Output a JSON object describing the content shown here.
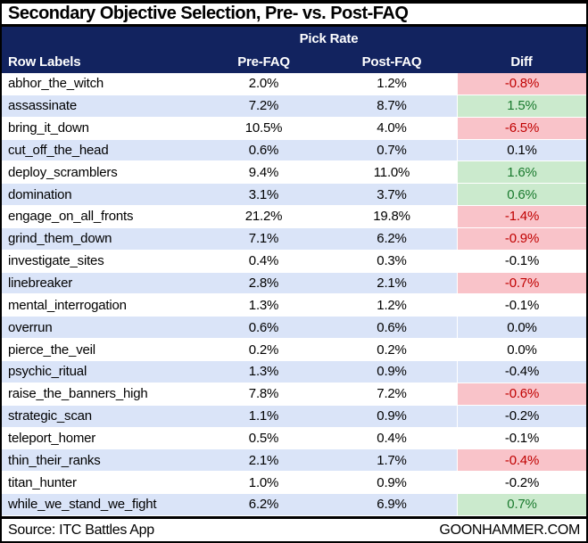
{
  "title": "Secondary Objective Selection, Pre- vs. Post-FAQ",
  "header": {
    "group_label": "Pick Rate",
    "columns": [
      "Row Labels",
      "Pre-FAQ",
      "Post-FAQ",
      "Diff"
    ]
  },
  "rows": [
    {
      "label": "abhor_the_witch",
      "pre": "2.0%",
      "post": "1.2%",
      "diff": "-0.8%",
      "diff_state": "neg"
    },
    {
      "label": "assassinate",
      "pre": "7.2%",
      "post": "8.7%",
      "diff": "1.5%",
      "diff_state": "pos"
    },
    {
      "label": "bring_it_down",
      "pre": "10.5%",
      "post": "4.0%",
      "diff": "-6.5%",
      "diff_state": "neg"
    },
    {
      "label": "cut_off_the_head",
      "pre": "0.6%",
      "post": "0.7%",
      "diff": "0.1%",
      "diff_state": "none"
    },
    {
      "label": "deploy_scramblers",
      "pre": "9.4%",
      "post": "11.0%",
      "diff": "1.6%",
      "diff_state": "pos"
    },
    {
      "label": "domination",
      "pre": "3.1%",
      "post": "3.7%",
      "diff": "0.6%",
      "diff_state": "pos"
    },
    {
      "label": "engage_on_all_fronts",
      "pre": "21.2%",
      "post": "19.8%",
      "diff": "-1.4%",
      "diff_state": "neg"
    },
    {
      "label": "grind_them_down",
      "pre": "7.1%",
      "post": "6.2%",
      "diff": "-0.9%",
      "diff_state": "neg"
    },
    {
      "label": "investigate_sites",
      "pre": "0.4%",
      "post": "0.3%",
      "diff": "-0.1%",
      "diff_state": "none"
    },
    {
      "label": "linebreaker",
      "pre": "2.8%",
      "post": "2.1%",
      "diff": "-0.7%",
      "diff_state": "neg"
    },
    {
      "label": "mental_interrogation",
      "pre": "1.3%",
      "post": "1.2%",
      "diff": "-0.1%",
      "diff_state": "none"
    },
    {
      "label": "overrun",
      "pre": "0.6%",
      "post": "0.6%",
      "diff": "0.0%",
      "diff_state": "none"
    },
    {
      "label": "pierce_the_veil",
      "pre": "0.2%",
      "post": "0.2%",
      "diff": "0.0%",
      "diff_state": "none"
    },
    {
      "label": "psychic_ritual",
      "pre": "1.3%",
      "post": "0.9%",
      "diff": "-0.4%",
      "diff_state": "none"
    },
    {
      "label": "raise_the_banners_high",
      "pre": "7.8%",
      "post": "7.2%",
      "diff": "-0.6%",
      "diff_state": "neg"
    },
    {
      "label": "strategic_scan",
      "pre": "1.1%",
      "post": "0.9%",
      "diff": "-0.2%",
      "diff_state": "none"
    },
    {
      "label": "teleport_homer",
      "pre": "0.5%",
      "post": "0.4%",
      "diff": "-0.1%",
      "diff_state": "none"
    },
    {
      "label": "thin_their_ranks",
      "pre": "2.1%",
      "post": "1.7%",
      "diff": "-0.4%",
      "diff_state": "neg"
    },
    {
      "label": "titan_hunter",
      "pre": "1.0%",
      "post": "0.9%",
      "diff": "-0.2%",
      "diff_state": "none"
    },
    {
      "label": "while_we_stand_we_fight",
      "pre": "6.2%",
      "post": "6.9%",
      "diff": "0.7%",
      "diff_state": "pos"
    }
  ],
  "footer": {
    "source": "Source: ITC Battles App",
    "brand": "GOONHAMMER.COM"
  },
  "colors": {
    "navy": "#12235f",
    "row_alt_blue": "#dae4f8",
    "diff_negative_bg": "#f9c3c9",
    "diff_negative_text": "#c00000",
    "diff_positive_bg": "#cbeacd",
    "diff_positive_text": "#1a7a2e",
    "header_text": "#ffffff",
    "border_black": "#000000"
  },
  "chart_data": {
    "type": "table",
    "title": "Secondary Objective Selection, Pre- vs. Post-FAQ",
    "column_group_label": "Pick Rate",
    "columns": [
      "Row Labels",
      "Pre-FAQ",
      "Post-FAQ",
      "Diff"
    ],
    "units": "percent",
    "rows": [
      {
        "label": "abhor_the_witch",
        "pre_faq": 2.0,
        "post_faq": 1.2,
        "diff": -0.8,
        "diff_highlight": "negative"
      },
      {
        "label": "assassinate",
        "pre_faq": 7.2,
        "post_faq": 8.7,
        "diff": 1.5,
        "diff_highlight": "positive"
      },
      {
        "label": "bring_it_down",
        "pre_faq": 10.5,
        "post_faq": 4.0,
        "diff": -6.5,
        "diff_highlight": "negative"
      },
      {
        "label": "cut_off_the_head",
        "pre_faq": 0.6,
        "post_faq": 0.7,
        "diff": 0.1,
        "diff_highlight": "none"
      },
      {
        "label": "deploy_scramblers",
        "pre_faq": 9.4,
        "post_faq": 11.0,
        "diff": 1.6,
        "diff_highlight": "positive"
      },
      {
        "label": "domination",
        "pre_faq": 3.1,
        "post_faq": 3.7,
        "diff": 0.6,
        "diff_highlight": "positive"
      },
      {
        "label": "engage_on_all_fronts",
        "pre_faq": 21.2,
        "post_faq": 19.8,
        "diff": -1.4,
        "diff_highlight": "negative"
      },
      {
        "label": "grind_them_down",
        "pre_faq": 7.1,
        "post_faq": 6.2,
        "diff": -0.9,
        "diff_highlight": "negative"
      },
      {
        "label": "investigate_sites",
        "pre_faq": 0.4,
        "post_faq": 0.3,
        "diff": -0.1,
        "diff_highlight": "none"
      },
      {
        "label": "linebreaker",
        "pre_faq": 2.8,
        "post_faq": 2.1,
        "diff": -0.7,
        "diff_highlight": "negative"
      },
      {
        "label": "mental_interrogation",
        "pre_faq": 1.3,
        "post_faq": 1.2,
        "diff": -0.1,
        "diff_highlight": "none"
      },
      {
        "label": "overrun",
        "pre_faq": 0.6,
        "post_faq": 0.6,
        "diff": 0.0,
        "diff_highlight": "none"
      },
      {
        "label": "pierce_the_veil",
        "pre_faq": 0.2,
        "post_faq": 0.2,
        "diff": 0.0,
        "diff_highlight": "none"
      },
      {
        "label": "psychic_ritual",
        "pre_faq": 1.3,
        "post_faq": 0.9,
        "diff": -0.4,
        "diff_highlight": "none"
      },
      {
        "label": "raise_the_banners_high",
        "pre_faq": 7.8,
        "post_faq": 7.2,
        "diff": -0.6,
        "diff_highlight": "negative"
      },
      {
        "label": "strategic_scan",
        "pre_faq": 1.1,
        "post_faq": 0.9,
        "diff": -0.2,
        "diff_highlight": "none"
      },
      {
        "label": "teleport_homer",
        "pre_faq": 0.5,
        "post_faq": 0.4,
        "diff": -0.1,
        "diff_highlight": "none"
      },
      {
        "label": "thin_their_ranks",
        "pre_faq": 2.1,
        "post_faq": 1.7,
        "diff": -0.4,
        "diff_highlight": "negative"
      },
      {
        "label": "titan_hunter",
        "pre_faq": 1.0,
        "post_faq": 0.9,
        "diff": -0.2,
        "diff_highlight": "none"
      },
      {
        "label": "while_we_stand_we_fight",
        "pre_faq": 6.2,
        "post_faq": 6.9,
        "diff": 0.7,
        "diff_highlight": "positive"
      }
    ],
    "source": "ITC Battles App"
  }
}
